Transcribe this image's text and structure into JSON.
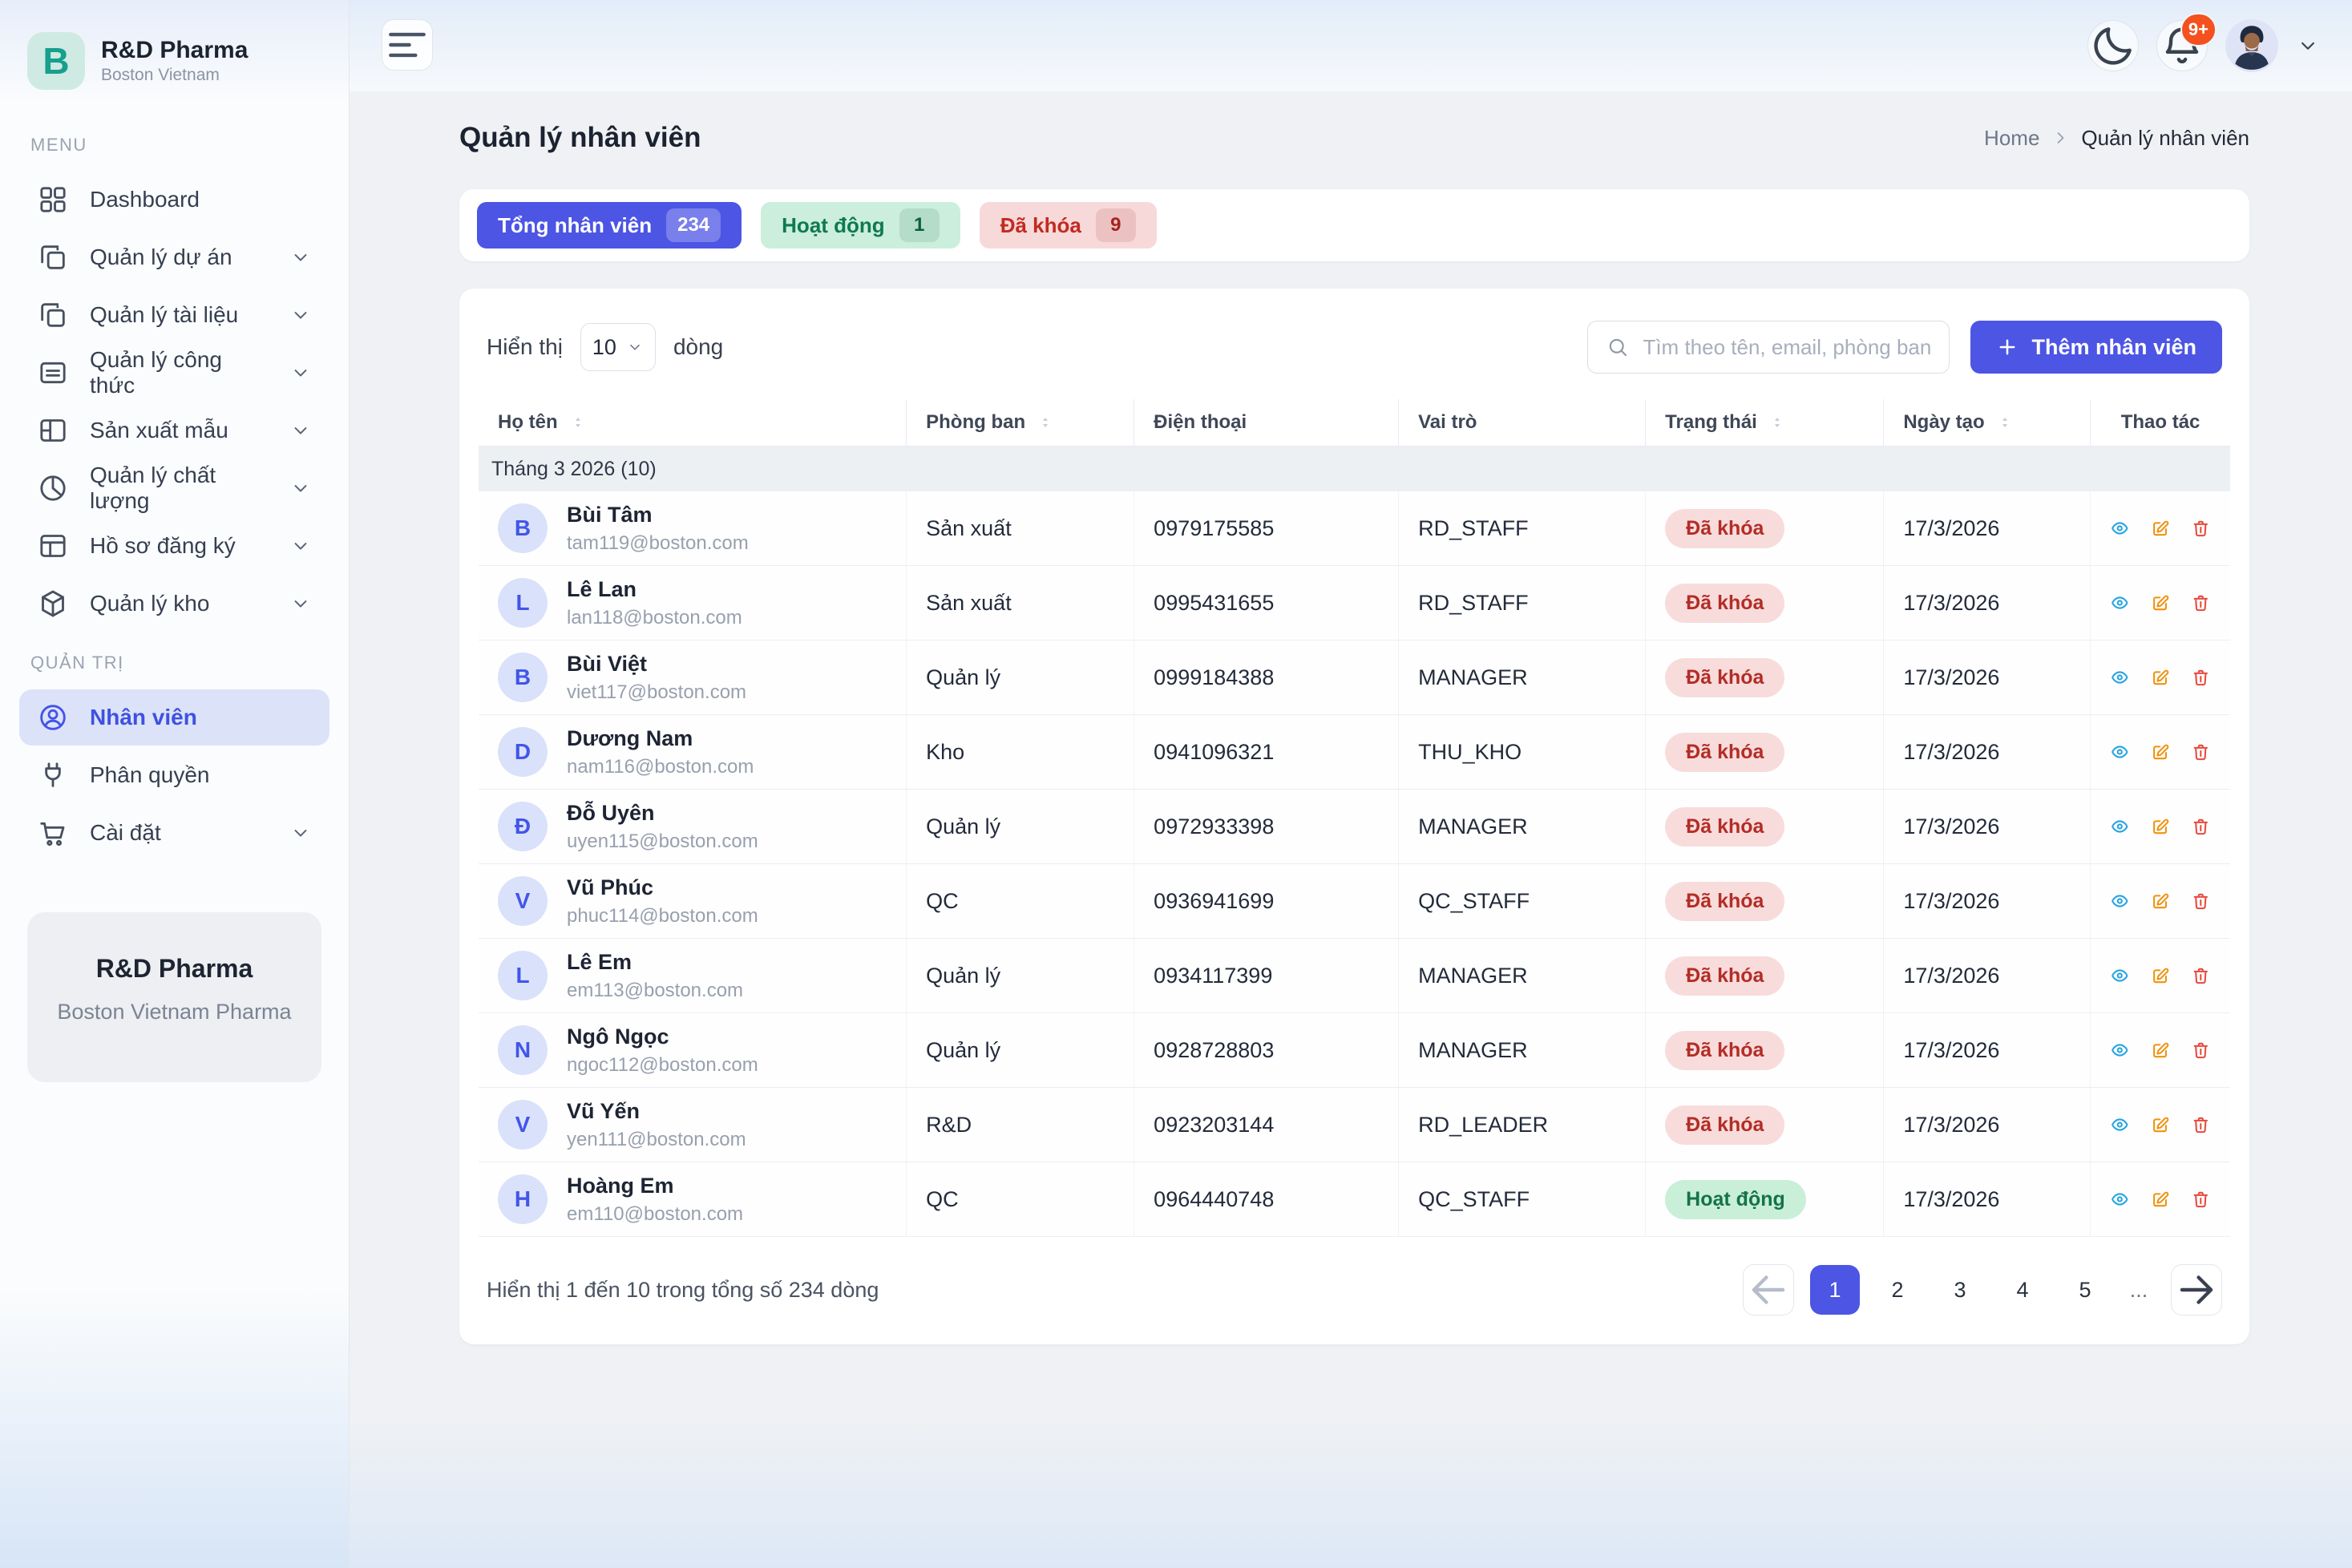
{
  "colors": {
    "accent": "#4c55e4",
    "success_bg": "#c9efd8",
    "success_text": "#157347",
    "danger_bg": "#f8dcdc",
    "danger_text": "#b32d26",
    "warn_icon": "#f0920f",
    "info_icon": "#24a4e0",
    "delete_icon": "#e7493c",
    "brand_teal": "#16a08d",
    "badge_orange": "#f4511e"
  },
  "brand": {
    "initial": "B",
    "name": "R&D Pharma",
    "subtitle": "Boston Vietnam"
  },
  "sidebar": {
    "menu_label": "MENU",
    "admin_label": "QUẢN TRỊ",
    "items": [
      {
        "key": "dashboard",
        "label": "Dashboard",
        "icon": "grid",
        "expandable": false
      },
      {
        "key": "projects",
        "label": "Quản lý dự án",
        "icon": "copy",
        "expandable": true
      },
      {
        "key": "documents",
        "label": "Quản lý tài liệu",
        "icon": "copy",
        "expandable": true
      },
      {
        "key": "formulas",
        "label": "Quản lý công thức",
        "icon": "card",
        "expandable": true
      },
      {
        "key": "sample-production",
        "label": "Sản xuất mẫu",
        "icon": "panel-left",
        "expandable": true
      },
      {
        "key": "quality",
        "label": "Quản lý chất lượng",
        "icon": "pie",
        "expandable": true
      },
      {
        "key": "registration",
        "label": "Hồ sơ đăng ký",
        "icon": "panel-top",
        "expandable": true
      },
      {
        "key": "warehouse",
        "label": "Quản lý kho",
        "icon": "cube",
        "expandable": true
      }
    ],
    "admin_items": [
      {
        "key": "employees",
        "label": "Nhân viên",
        "icon": "user",
        "active": true,
        "expandable": false
      },
      {
        "key": "permissions",
        "label": "Phân quyền",
        "icon": "plug",
        "active": false,
        "expandable": false
      },
      {
        "key": "settings",
        "label": "Cài đặt",
        "icon": "cart",
        "active": false,
        "expandable": true
      }
    ],
    "footer": {
      "title": "R&D Pharma",
      "subtitle": "Boston Vietnam Pharma"
    }
  },
  "header": {
    "notification_badge": "9+"
  },
  "page": {
    "title": "Quản lý nhân viên",
    "breadcrumb": {
      "home": "Home",
      "current": "Quản lý nhân viên"
    }
  },
  "stats": [
    {
      "label": "Tổng nhân viên",
      "count": "234",
      "style": "primary"
    },
    {
      "label": "Hoạt động",
      "count": "1",
      "style": "success"
    },
    {
      "label": "Đã khóa",
      "count": "9",
      "style": "danger"
    }
  ],
  "controls": {
    "show_label": "Hiển thị",
    "page_size": "10",
    "rows_label": "dòng",
    "search_placeholder": "Tìm theo tên, email, phòng ban...",
    "add_button": "Thêm nhân viên"
  },
  "table": {
    "columns": [
      {
        "label": "Họ tên",
        "sortable": true
      },
      {
        "label": "Phòng ban",
        "sortable": true
      },
      {
        "label": "Điện thoại",
        "sortable": false
      },
      {
        "label": "Vai trò",
        "sortable": false
      },
      {
        "label": "Trạng thái",
        "sortable": true
      },
      {
        "label": "Ngày tạo",
        "sortable": true
      },
      {
        "label": "Thao tác",
        "sortable": false
      }
    ],
    "group_label": "Tháng 3 2026 (10)",
    "rows": [
      {
        "initial": "B",
        "name": "Bùi Tâm",
        "email": "tam119@boston.com",
        "department": "Sản xuất",
        "phone": "0979175585",
        "role": "RD_STAFF",
        "status": "Đã khóa",
        "status_type": "locked",
        "date": "17/3/2026"
      },
      {
        "initial": "L",
        "name": "Lê Lan",
        "email": "lan118@boston.com",
        "department": "Sản xuất",
        "phone": "0995431655",
        "role": "RD_STAFF",
        "status": "Đã khóa",
        "status_type": "locked",
        "date": "17/3/2026"
      },
      {
        "initial": "B",
        "name": "Bùi Việt",
        "email": "viet117@boston.com",
        "department": "Quản lý",
        "phone": "0999184388",
        "role": "MANAGER",
        "status": "Đã khóa",
        "status_type": "locked",
        "date": "17/3/2026"
      },
      {
        "initial": "D",
        "name": "Dương Nam",
        "email": "nam116@boston.com",
        "department": "Kho",
        "phone": "0941096321",
        "role": "THU_KHO",
        "status": "Đã khóa",
        "status_type": "locked",
        "date": "17/3/2026"
      },
      {
        "initial": "Đ",
        "name": "Đỗ Uyên",
        "email": "uyen115@boston.com",
        "department": "Quản lý",
        "phone": "0972933398",
        "role": "MANAGER",
        "status": "Đã khóa",
        "status_type": "locked",
        "date": "17/3/2026"
      },
      {
        "initial": "V",
        "name": "Vũ Phúc",
        "email": "phuc114@boston.com",
        "department": "QC",
        "phone": "0936941699",
        "role": "QC_STAFF",
        "status": "Đã khóa",
        "status_type": "locked",
        "date": "17/3/2026"
      },
      {
        "initial": "L",
        "name": "Lê Em",
        "email": "em113@boston.com",
        "department": "Quản lý",
        "phone": "0934117399",
        "role": "MANAGER",
        "status": "Đã khóa",
        "status_type": "locked",
        "date": "17/3/2026"
      },
      {
        "initial": "N",
        "name": "Ngô Ngọc",
        "email": "ngoc112@boston.com",
        "department": "Quản lý",
        "phone": "0928728803",
        "role": "MANAGER",
        "status": "Đã khóa",
        "status_type": "locked",
        "date": "17/3/2026"
      },
      {
        "initial": "V",
        "name": "Vũ Yến",
        "email": "yen111@boston.com",
        "department": "R&D",
        "phone": "0923203144",
        "role": "RD_LEADER",
        "status": "Đã khóa",
        "status_type": "locked",
        "date": "17/3/2026"
      },
      {
        "initial": "H",
        "name": "Hoàng Em",
        "email": "em110@boston.com",
        "department": "QC",
        "phone": "0964440748",
        "role": "QC_STAFF",
        "status": "Hoạt động",
        "status_type": "active",
        "date": "17/3/2026"
      }
    ]
  },
  "pagination": {
    "summary": "Hiển thị 1 đến 10 trong tổng số 234 dòng",
    "pages": [
      "1",
      "2",
      "3",
      "4",
      "5",
      "..."
    ],
    "active_page": "1"
  }
}
